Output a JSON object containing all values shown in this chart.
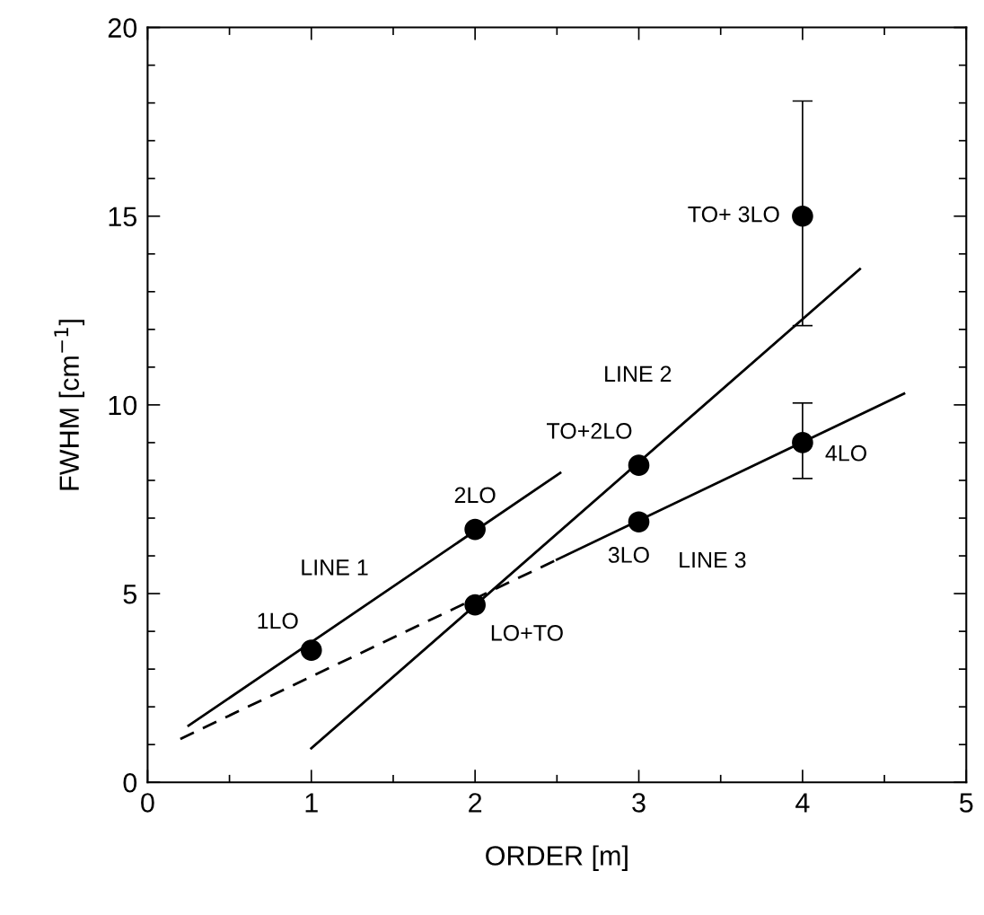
{
  "chart_data": {
    "type": "scatter",
    "xlabel": "ORDER [m]",
    "ylabel": "FWHM [cm$^{−1}$]",
    "xlim": [
      0,
      5
    ],
    "ylim": [
      0,
      20
    ],
    "xticks": [
      0,
      1,
      2,
      3,
      4,
      5
    ],
    "yticks": [
      0,
      5,
      10,
      15,
      20
    ],
    "grid": false,
    "legend": false,
    "series": [
      {
        "name": "1LO",
        "color": "#000000",
        "marker": "circle",
        "x": [
          1
        ],
        "values": [
          3.5
        ]
      },
      {
        "name": "2LO",
        "color": "#000000",
        "marker": "circle",
        "x": [
          2
        ],
        "values": [
          6.7
        ]
      },
      {
        "name": "LO+TO",
        "color": "#000000",
        "marker": "circle",
        "x": [
          2
        ],
        "values": [
          4.7
        ]
      },
      {
        "name": "TO+2LO",
        "color": "#000000",
        "marker": "circle",
        "x": [
          3
        ],
        "values": [
          8.4
        ]
      },
      {
        "name": "3LO",
        "color": "#000000",
        "marker": "circle",
        "x": [
          3
        ],
        "values": [
          6.9
        ]
      },
      {
        "name": "4LO",
        "color": "#000000",
        "marker": "circle",
        "x": [
          4
        ],
        "values": [
          9.0
        ],
        "errors": [
          [
            8.05,
            10.05
          ]
        ]
      },
      {
        "name": "TO+ 3LO",
        "color": "#000000",
        "marker": "circle",
        "x": [
          4
        ],
        "values": [
          15.0
        ],
        "errors": [
          [
            12.1,
            18.05
          ]
        ]
      },
      {
        "type": "line",
        "name": "LINE 1",
        "color": "#000000",
        "line_style": "solid",
        "x": [
          0.25,
          2.52
        ],
        "values": [
          1.5,
          8.2
        ]
      },
      {
        "type": "line",
        "name": "LINE 2",
        "color": "#000000",
        "line_style": "solid",
        "x": [
          1.0,
          4.35
        ],
        "values": [
          0.9,
          13.6
        ]
      },
      {
        "type": "line",
        "color": "#000000",
        "line_style": "dashed",
        "x": [
          0.2,
          2.5
        ],
        "values": [
          1.15,
          5.9
        ]
      },
      {
        "type": "line",
        "name": "LINE 3",
        "color": "#000000",
        "line_style": "solid",
        "x": [
          2.5,
          4.62
        ],
        "values": [
          5.9,
          10.3
        ]
      }
    ]
  }
}
